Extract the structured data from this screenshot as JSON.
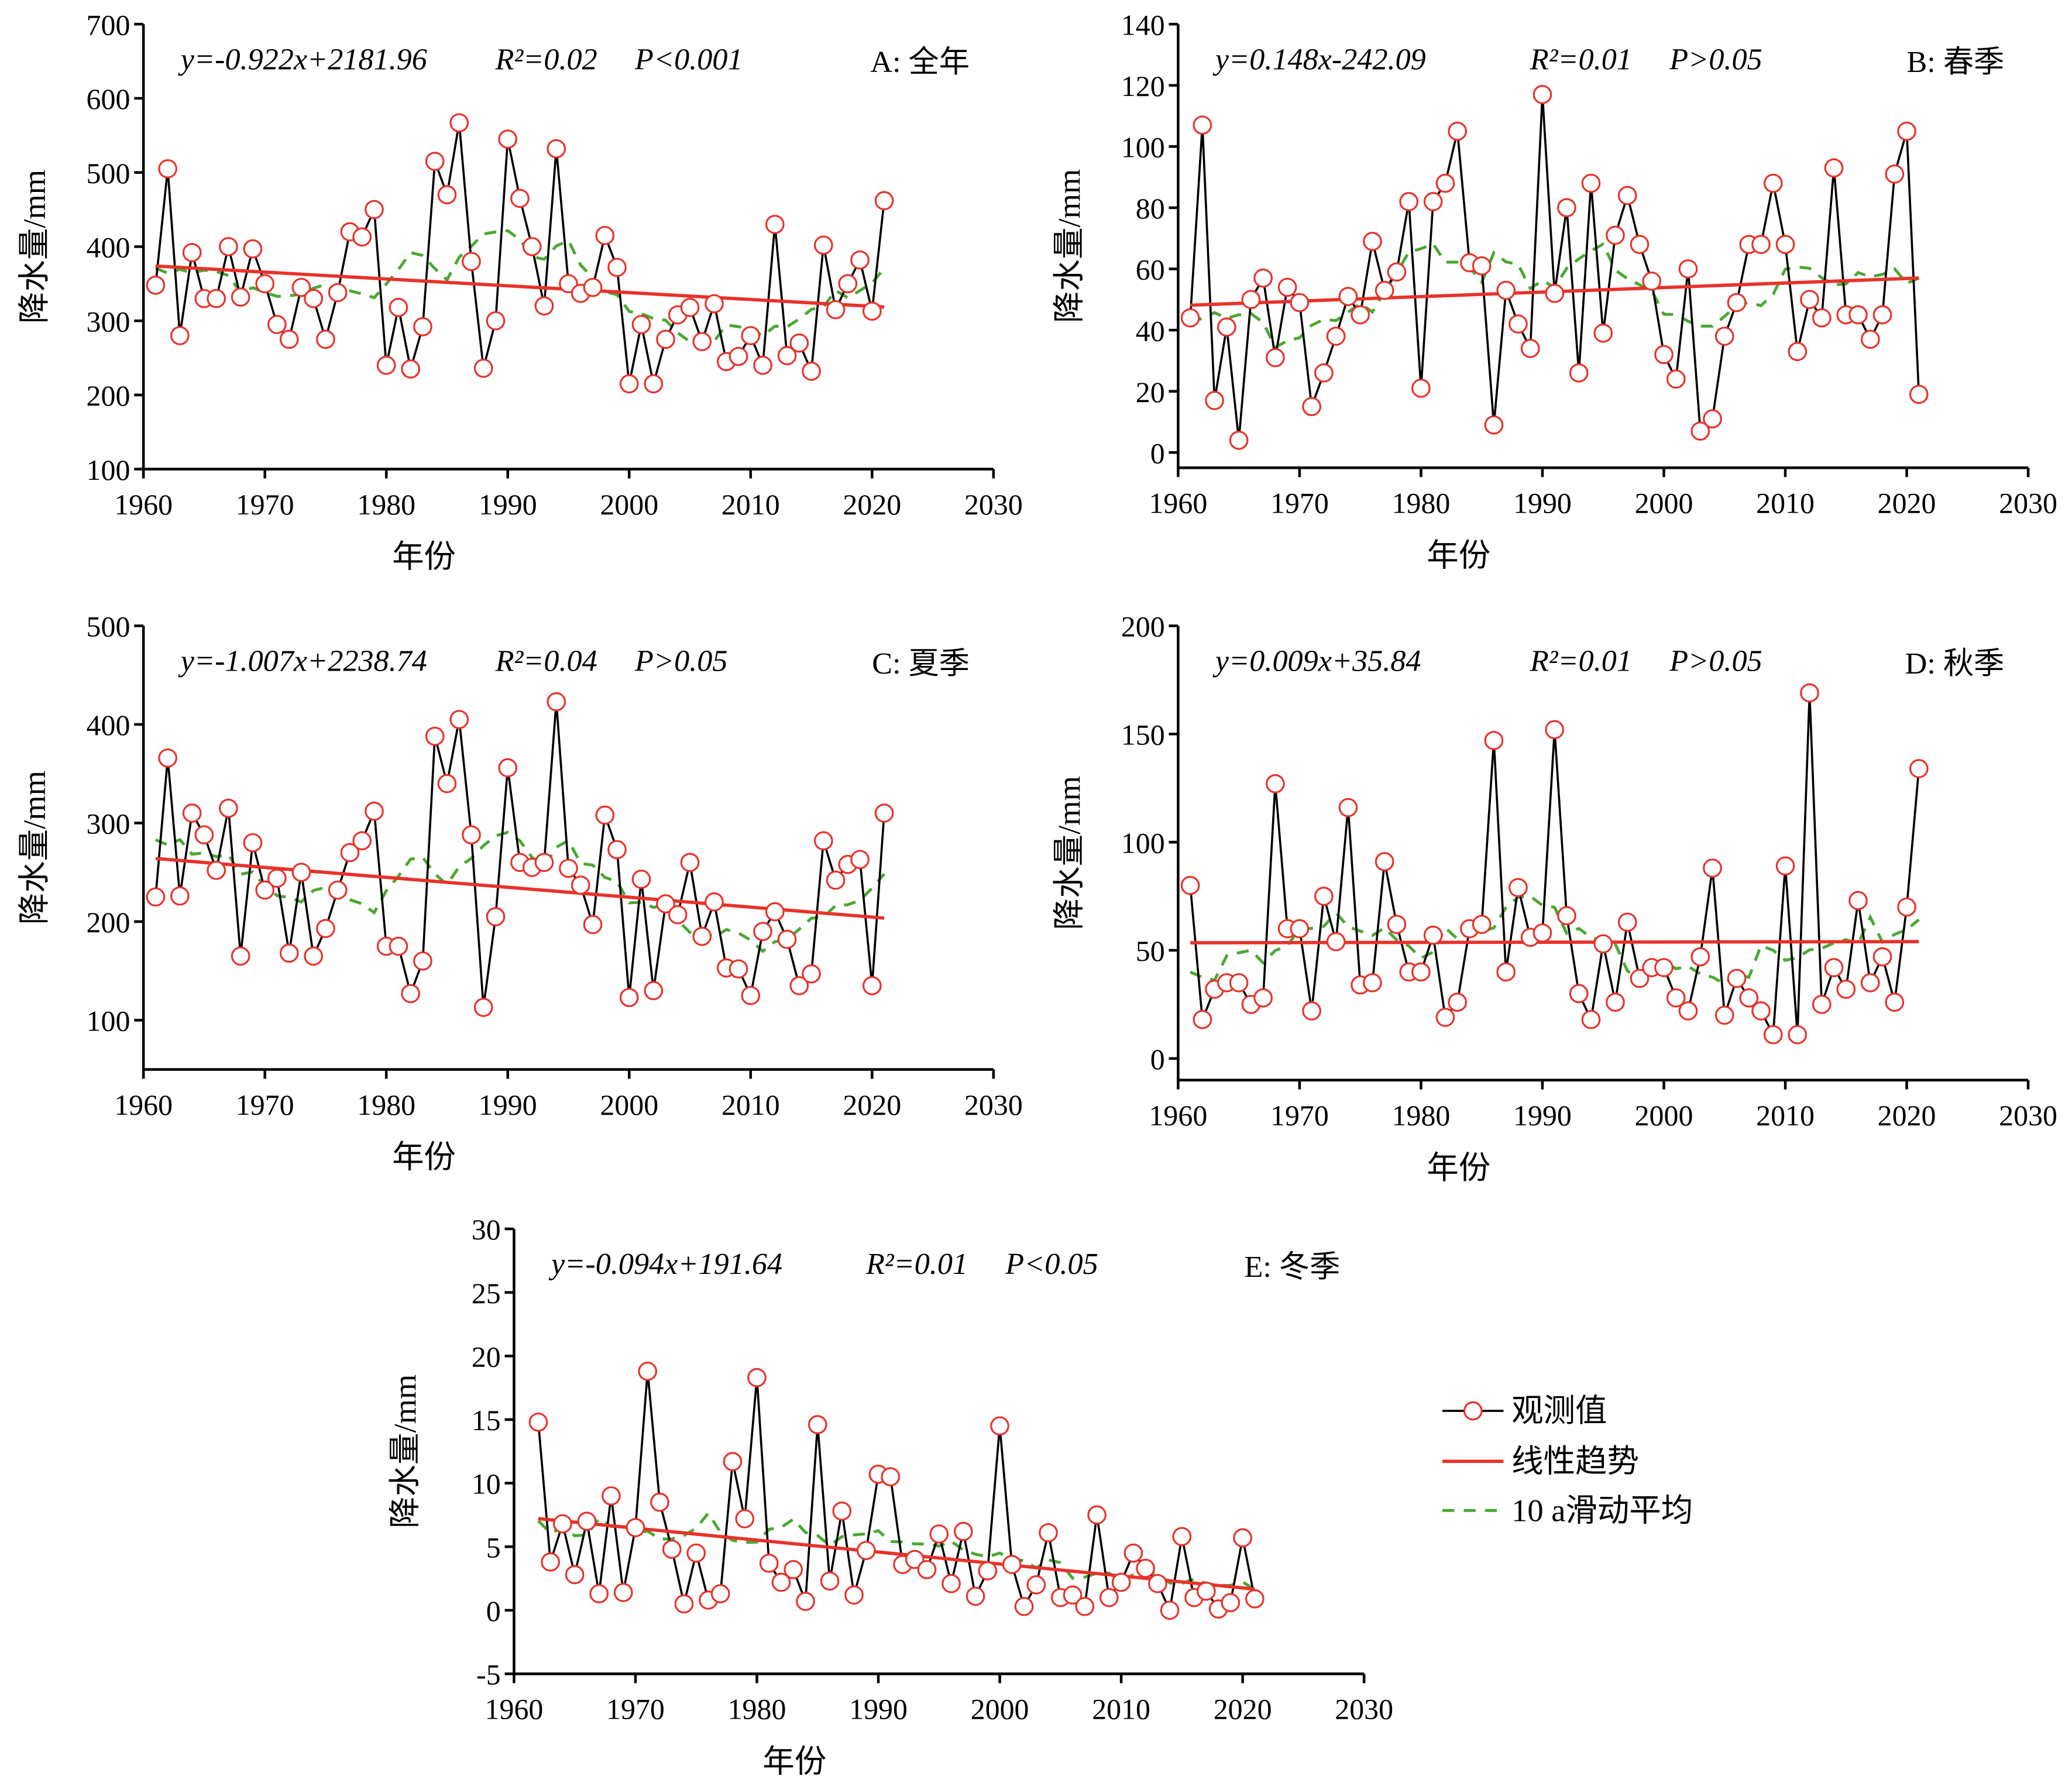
{
  "chart_data": [
    {
      "id": "A",
      "type": "line",
      "panel_label": "A: 全年",
      "equation": "y=-0.922x+2181.96",
      "r2": "R²=0.02",
      "p": "P<0.001",
      "trend": {
        "slope": -0.922,
        "intercept": 2181.96
      },
      "xlabel": "年份",
      "ylabel": "降水量/mm",
      "xlim": [
        1960,
        2030
      ],
      "ylim": [
        100,
        700
      ],
      "xticks": [
        1960,
        1970,
        1980,
        1990,
        2000,
        2010,
        2020,
        2030
      ],
      "yticks": [
        100,
        200,
        300,
        400,
        500,
        600,
        700
      ],
      "x_start": 1961,
      "values": [
        348,
        505,
        280,
        392,
        330,
        330,
        400,
        332,
        397,
        350,
        295,
        275,
        345,
        330,
        275,
        338,
        420,
        413,
        450,
        240,
        318,
        235,
        292,
        515,
        470,
        567,
        380,
        236,
        300,
        545,
        465,
        400,
        320,
        532,
        350,
        337,
        345,
        415,
        372,
        215,
        295,
        215,
        275,
        308,
        318,
        272,
        323,
        245,
        252,
        280,
        240,
        430,
        253,
        270,
        232,
        402,
        315,
        350,
        382,
        313,
        462
      ]
    },
    {
      "id": "B",
      "type": "line",
      "panel_label": "B: 春季",
      "equation": "y=0.148x-242.09",
      "r2": "R²=0.01",
      "p": "P>0.05",
      "trend": {
        "slope": 0.148,
        "intercept": -242.09
      },
      "xlabel": "年份",
      "ylabel": "降水量/mm",
      "xlim": [
        1960,
        2030
      ],
      "ylim": [
        -5,
        140
      ],
      "xticks": [
        1960,
        1970,
        1980,
        1990,
        2000,
        2010,
        2020,
        2030
      ],
      "yticks": [
        0,
        20,
        40,
        60,
        80,
        100,
        120,
        140
      ],
      "x_start": 1961,
      "values": [
        44,
        107,
        17,
        41,
        4,
        50,
        57,
        31,
        54,
        49,
        15,
        26,
        38,
        51,
        45,
        69,
        53,
        59,
        82,
        21,
        82,
        88,
        105,
        62,
        61,
        9,
        53,
        42,
        34,
        117,
        52,
        80,
        26,
        88,
        39,
        71,
        84,
        68,
        56,
        32,
        24,
        60,
        7,
        11,
        38,
        49,
        68,
        68,
        88,
        68,
        33,
        50,
        44,
        93,
        45,
        45,
        37,
        45,
        91,
        105,
        19
      ]
    },
    {
      "id": "C",
      "type": "line",
      "panel_label": "C: 夏季",
      "equation": "y=-1.007x+2238.74",
      "r2": "R²=0.04",
      "p": "P>0.05",
      "trend": {
        "slope": -1.007,
        "intercept": 2238.74
      },
      "xlabel": "年份",
      "ylabel": "降水量/mm",
      "xlim": [
        1960,
        2030
      ],
      "ylim": [
        50,
        500
      ],
      "xticks": [
        1960,
        1970,
        1980,
        1990,
        2000,
        2010,
        2020,
        2030
      ],
      "yticks": [
        100,
        200,
        300,
        400,
        500
      ],
      "x_start": 1961,
      "values": [
        225,
        366,
        226,
        310,
        288,
        252,
        315,
        165,
        280,
        232,
        244,
        168,
        250,
        165,
        193,
        232,
        270,
        282,
        312,
        175,
        175,
        127,
        160,
        388,
        340,
        405,
        288,
        113,
        205,
        356,
        260,
        255,
        260,
        423,
        254,
        237,
        197,
        308,
        273,
        123,
        243,
        130,
        218,
        207,
        260,
        185,
        220,
        153,
        152,
        125,
        190,
        210,
        182,
        135,
        147,
        282,
        242,
        258,
        263,
        135,
        310
      ]
    },
    {
      "id": "D",
      "type": "line",
      "panel_label": "D: 秋季",
      "equation": "y=0.009x+35.84",
      "r2": "R²=0.01",
      "p": "P>0.05",
      "trend": {
        "slope": 0.009,
        "intercept": 35.84
      },
      "xlabel": "年份",
      "ylabel": "降水量/mm",
      "xlim": [
        1960,
        2030
      ],
      "ylim": [
        -10,
        200
      ],
      "xticks": [
        1960,
        1970,
        1980,
        1990,
        2000,
        2010,
        2020,
        2030
      ],
      "yticks": [
        0,
        50,
        100,
        150,
        200
      ],
      "x_start": 1961,
      "values": [
        80,
        18,
        32,
        35,
        35,
        25,
        28,
        127,
        60,
        60,
        22,
        75,
        54,
        116,
        34,
        35,
        91,
        62,
        40,
        40,
        57,
        19,
        26,
        60,
        62,
        147,
        40,
        79,
        56,
        58,
        152,
        66,
        30,
        18,
        53,
        26,
        63,
        37,
        42,
        42,
        28,
        22,
        47,
        88,
        20,
        37,
        28,
        22,
        11,
        89,
        11,
        169,
        25,
        42,
        32,
        73,
        35,
        47,
        26,
        70,
        134
      ]
    },
    {
      "id": "E",
      "type": "line",
      "panel_label": "E: 冬季",
      "equation": "y=-0.094x+191.64",
      "r2": "R²=0.01",
      "p": "P<0.05",
      "trend": {
        "slope": -0.094,
        "intercept": 191.64
      },
      "xlabel": "年份",
      "ylabel": "降水量/mm",
      "xlim": [
        1960,
        2030
      ],
      "ylim": [
        -5,
        30
      ],
      "xticks": [
        1960,
        1970,
        1980,
        1990,
        2000,
        2010,
        2020,
        2030
      ],
      "yticks": [
        -5,
        0,
        5,
        10,
        15,
        20,
        25,
        30
      ],
      "x_start": 1962,
      "values": [
        14.8,
        3.8,
        6.8,
        2.8,
        7.0,
        1.3,
        9.0,
        1.4,
        6.5,
        18.8,
        8.5,
        4.8,
        0.5,
        4.5,
        0.8,
        1.3,
        11.7,
        7.2,
        18.3,
        3.7,
        2.2,
        3.2,
        0.7,
        14.6,
        2.3,
        7.8,
        1.2,
        4.7,
        10.7,
        10.5,
        3.6,
        4.0,
        3.2,
        6.0,
        2.1,
        6.2,
        1.1,
        3.1,
        14.5,
        3.6,
        0.3,
        2.0,
        6.1,
        1.0,
        1.2,
        0.3,
        7.5,
        1.0,
        2.2,
        4.5,
        3.3,
        2.1,
        0.0,
        5.8,
        1.0,
        1.5,
        0.1,
        0.6,
        5.7,
        0.9
      ]
    }
  ],
  "legend": {
    "placement": "bottom-right",
    "items": [
      {
        "label": "观测值",
        "style": "black line with red open circles"
      },
      {
        "label": "线性趋势",
        "style": "red solid line"
      },
      {
        "label": "10 a滑动平均",
        "style": "green dashed line"
      }
    ]
  },
  "colors": {
    "observed_line": "#000000",
    "marker": "#e8322a",
    "trend": "#e8322a",
    "moving_average": "#4aa832"
  }
}
